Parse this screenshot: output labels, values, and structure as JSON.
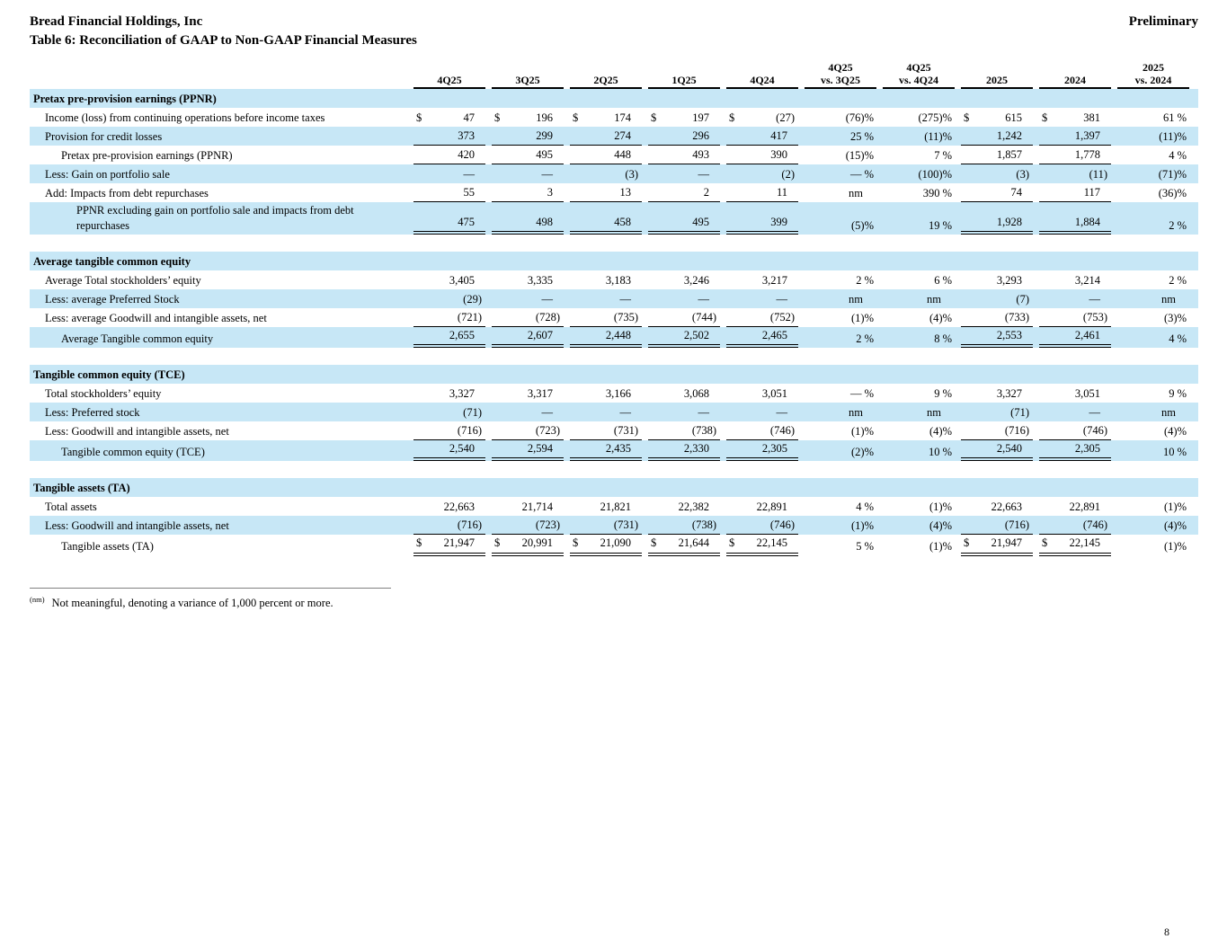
{
  "page": {
    "company": "Bread Financial Holdings, Inc",
    "table_title": "Table 6: Reconciliation of GAAP to Non-GAAP Financial Measures",
    "watermark": "Preliminary",
    "page_number": "8",
    "footnote_marker": "(nm)",
    "footnote_text": "Not meaningful, denoting a variance of 1,000 percent or more.",
    "shade_color": "#c7e7f6"
  },
  "columns": [
    {
      "line1": "",
      "line2": "4Q25"
    },
    {
      "line1": "",
      "line2": "3Q25"
    },
    {
      "line1": "",
      "line2": "2Q25"
    },
    {
      "line1": "",
      "line2": "1Q25"
    },
    {
      "line1": "",
      "line2": "4Q24"
    },
    {
      "line1": "4Q25",
      "line2": "vs. 3Q25"
    },
    {
      "line1": "4Q25",
      "line2": "vs. 4Q24"
    },
    {
      "line1": "",
      "line2": "2025"
    },
    {
      "line1": "",
      "line2": "2024"
    },
    {
      "line1": "2025",
      "line2": "vs. 2024"
    }
  ],
  "sections": [
    {
      "title": "Pretax pre-provision earnings (PPNR)",
      "rows": [
        {
          "label": "Income (loss) from continuing operations before income taxes",
          "indent": 1,
          "shaded": false,
          "dollar": true,
          "values": [
            "47",
            "196",
            "174",
            "197",
            "(27)",
            "(76)%",
            "(275)%",
            "615",
            "381",
            "61 %"
          ]
        },
        {
          "label": "Provision for credit losses",
          "indent": 1,
          "shaded": true,
          "u": "s",
          "values": [
            "373",
            "299",
            "274",
            "296",
            "417",
            "25 %",
            "(11)%",
            "1,242",
            "1,397",
            "(11)%"
          ]
        },
        {
          "label": "Pretax pre-provision earnings (PPNR)",
          "indent": 2,
          "shaded": false,
          "u": "s",
          "values": [
            "420",
            "495",
            "448",
            "493",
            "390",
            "(15)%",
            "7 %",
            "1,857",
            "1,778",
            "4 %"
          ]
        },
        {
          "label": "Less: Gain on portfolio sale",
          "indent": 1,
          "shaded": true,
          "values": [
            "—",
            "—",
            "(3)",
            "—",
            "(2)",
            "— %",
            "(100)%",
            "(3)",
            "(11)",
            "(71)%"
          ]
        },
        {
          "label": "Add: Impacts from debt repurchases",
          "indent": 1,
          "shaded": false,
          "u": "s",
          "values": [
            "55",
            "3",
            "13",
            "2",
            "11",
            "nm",
            "390 %",
            "74",
            "117",
            "(36)%"
          ]
        },
        {
          "label": "PPNR excluding gain on portfolio sale and impacts from debt repurchases",
          "indent": 3,
          "shaded": true,
          "u": "d",
          "values": [
            "475",
            "498",
            "458",
            "495",
            "399",
            "(5)%",
            "19 %",
            "1,928",
            "1,884",
            "2 %"
          ]
        }
      ]
    },
    {
      "title": "Average tangible common equity",
      "rows": [
        {
          "label": "Average Total stockholders’ equity",
          "indent": 1,
          "shaded": false,
          "values": [
            "3,405",
            "3,335",
            "3,183",
            "3,246",
            "3,217",
            "2 %",
            "6 %",
            "3,293",
            "3,214",
            "2 %"
          ]
        },
        {
          "label": "Less: average Preferred Stock",
          "indent": 1,
          "shaded": true,
          "values": [
            "(29)",
            "—",
            "—",
            "—",
            "—",
            "nm",
            "nm",
            "(7)",
            "—",
            "nm"
          ]
        },
        {
          "label": "Less: average Goodwill and intangible assets, net",
          "indent": 1,
          "shaded": false,
          "u": "s",
          "values": [
            "(721)",
            "(728)",
            "(735)",
            "(744)",
            "(752)",
            "(1)%",
            "(4)%",
            "(733)",
            "(753)",
            "(3)%"
          ]
        },
        {
          "label": "Average Tangible common equity",
          "indent": 2,
          "shaded": true,
          "u": "d",
          "values": [
            "2,655",
            "2,607",
            "2,448",
            "2,502",
            "2,465",
            "2 %",
            "8 %",
            "2,553",
            "2,461",
            "4 %"
          ]
        }
      ]
    },
    {
      "title": "Tangible common equity (TCE)",
      "rows": [
        {
          "label": "Total stockholders’ equity",
          "indent": 1,
          "shaded": false,
          "values": [
            "3,327",
            "3,317",
            "3,166",
            "3,068",
            "3,051",
            "— %",
            "9 %",
            "3,327",
            "3,051",
            "9 %"
          ]
        },
        {
          "label": "Less: Preferred stock",
          "indent": 1,
          "shaded": true,
          "values": [
            "(71)",
            "—",
            "—",
            "—",
            "—",
            "nm",
            "nm",
            "(71)",
            "—",
            "nm"
          ]
        },
        {
          "label": "Less: Goodwill and intangible assets, net",
          "indent": 1,
          "shaded": false,
          "u": "s",
          "values": [
            "(716)",
            "(723)",
            "(731)",
            "(738)",
            "(746)",
            "(1)%",
            "(4)%",
            "(716)",
            "(746)",
            "(4)%"
          ]
        },
        {
          "label": "Tangible common equity (TCE)",
          "indent": 2,
          "shaded": true,
          "u": "d",
          "values": [
            "2,540",
            "2,594",
            "2,435",
            "2,330",
            "2,305",
            "(2)%",
            "10 %",
            "2,540",
            "2,305",
            "10 %"
          ]
        }
      ]
    },
    {
      "title": "Tangible assets (TA)",
      "rows": [
        {
          "label": "Total assets",
          "indent": 1,
          "shaded": false,
          "values": [
            "22,663",
            "21,714",
            "21,821",
            "22,382",
            "22,891",
            "4 %",
            "(1)%",
            "22,663",
            "22,891",
            "(1)%"
          ]
        },
        {
          "label": "Less: Goodwill and intangible assets, net",
          "indent": 1,
          "shaded": true,
          "u": "s",
          "values": [
            "(716)",
            "(723)",
            "(731)",
            "(738)",
            "(746)",
            "(1)%",
            "(4)%",
            "(716)",
            "(746)",
            "(4)%"
          ]
        },
        {
          "label": "Tangible assets (TA)",
          "indent": 2,
          "shaded": false,
          "u": "d",
          "dollar": true,
          "values": [
            "21,947",
            "20,991",
            "21,090",
            "21,644",
            "22,145",
            "5 %",
            "(1)%",
            "21,947",
            "22,145",
            "(1)%"
          ]
        }
      ]
    }
  ]
}
